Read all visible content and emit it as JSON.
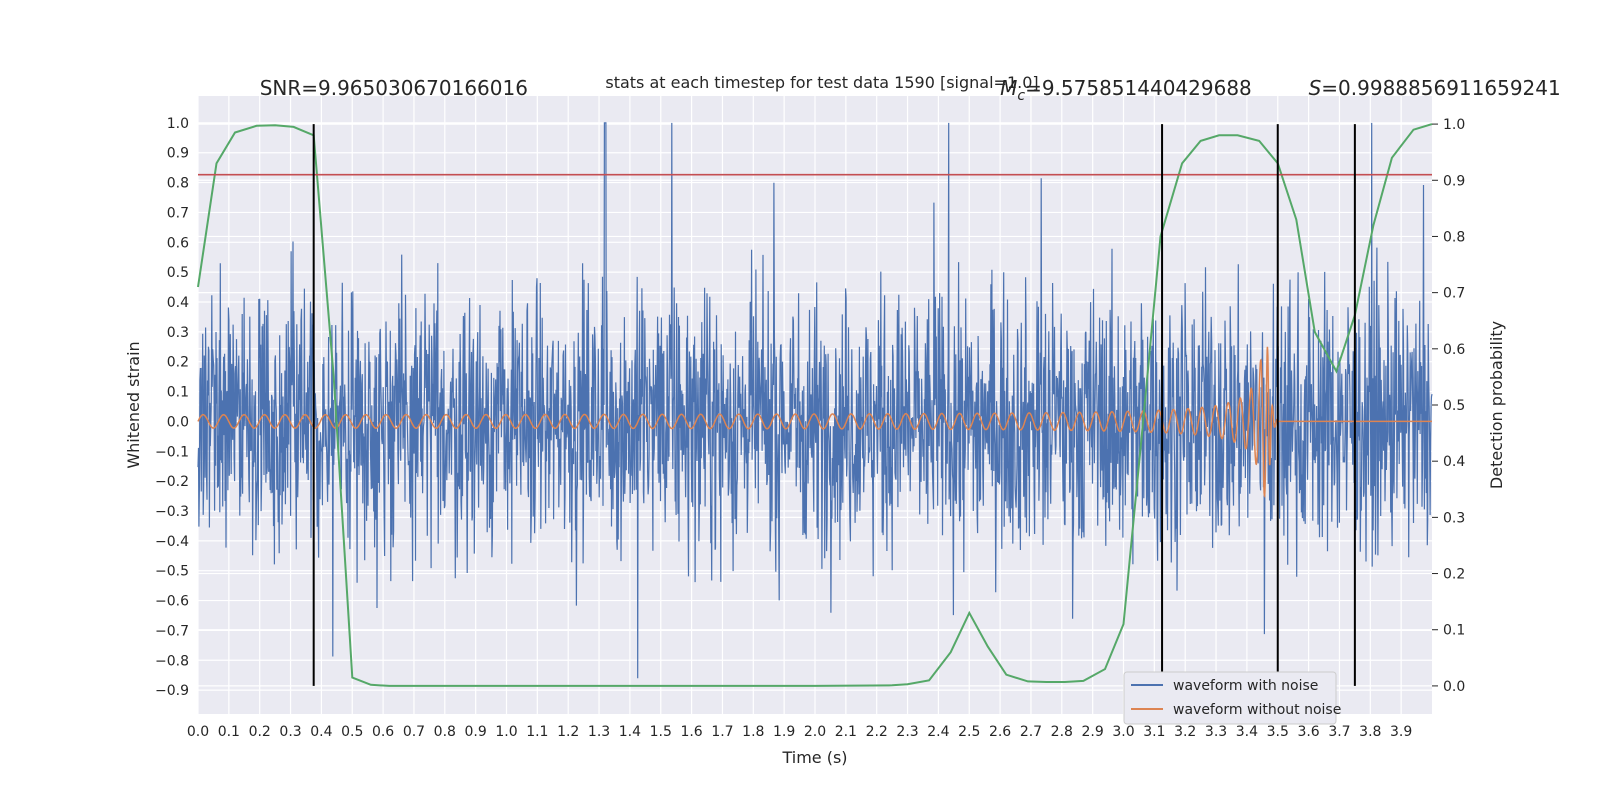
{
  "chart_data": {
    "type": "line",
    "title": "stats at each timestep for test data 1590 [signal=1.0]",
    "xlabel": "Time (s)",
    "ylabel": "Whitened strain",
    "ylabel_right": "Detection probability",
    "xlim": [
      0.0,
      4.0
    ],
    "ylim": [
      -0.98,
      1.09
    ],
    "ylim_right": [
      -0.05,
      1.05
    ],
    "x_ticks": [
      0.0,
      0.1,
      0.2,
      0.3,
      0.4,
      0.5,
      0.6,
      0.7,
      0.8,
      0.9,
      1.0,
      1.1,
      1.2,
      1.3,
      1.4,
      1.5,
      1.6,
      1.7,
      1.8,
      1.9,
      2.0,
      2.1,
      2.2,
      2.3,
      2.4,
      2.5,
      2.6,
      2.7,
      2.8,
      2.9,
      3.0,
      3.1,
      3.2,
      3.3,
      3.4,
      3.5,
      3.6,
      3.7,
      3.8,
      3.9
    ],
    "x_tick_labels": [
      "0.0",
      "0.1",
      "0.2",
      "0.3",
      "0.4",
      "0.5",
      "0.6",
      "0.7",
      "0.8",
      "0.9",
      "1.0",
      "1.1",
      "1.2",
      "1.3",
      "1.4",
      "1.5",
      "1.6",
      "1.7",
      "1.8",
      "1.9",
      "2.0",
      "2.1",
      "2.2",
      "2.3",
      "2.4",
      "2.5",
      "2.6",
      "2.7",
      "2.8",
      "2.9",
      "3.0",
      "3.1",
      "3.2",
      "3.3",
      "3.4",
      "3.5",
      "3.6",
      "3.7",
      "3.8",
      "3.9"
    ],
    "y_ticks": [
      1.0,
      0.9,
      0.8,
      0.7,
      0.6,
      0.5,
      0.4,
      0.3,
      0.2,
      0.1,
      0.0,
      -0.1,
      -0.2,
      -0.3,
      -0.4,
      -0.5,
      -0.6,
      -0.7,
      -0.8,
      -0.9
    ],
    "y_tick_labels": [
      "1.0",
      "0.9",
      "0.8",
      "0.7",
      "0.6",
      "0.5",
      "0.4",
      "0.3",
      "0.2",
      "0.1",
      "0.0",
      "−0.1",
      "−0.2",
      "−0.3",
      "−0.4",
      "−0.5",
      "−0.6",
      "−0.7",
      "−0.8",
      "−0.9"
    ],
    "y_right_ticks": [
      1.0,
      0.9,
      0.8,
      0.7,
      0.6,
      0.5,
      0.4,
      0.3,
      0.2,
      0.1,
      0.0
    ],
    "y_right_tick_labels": [
      "1.0",
      "0.9",
      "0.8",
      "0.7",
      "0.6",
      "0.5",
      "0.4",
      "0.3",
      "0.2",
      "0.1",
      "0.0"
    ],
    "grid": true,
    "background": "#eaeaf2",
    "series": [
      {
        "name": "waveform with noise",
        "axis": "left",
        "color": "#4c72b0",
        "kind": "noise",
        "amplitude_typical": 0.3,
        "amplitude_max": 1.0
      },
      {
        "name": "waveform without noise",
        "axis": "left",
        "color": "#dd8452",
        "kind": "chirp",
        "start_amplitude": 0.02,
        "peak_amplitude": 0.25,
        "merger_time": 3.47,
        "ringdown_end": 3.5,
        "start_frequency_hz": 11,
        "merger_frequency_hz": 62
      },
      {
        "axis": "right",
        "color": "#55a868",
        "x": [
          0.0,
          0.06,
          0.12,
          0.19,
          0.25,
          0.31,
          0.375,
          0.44,
          0.5,
          0.56,
          0.62,
          0.7,
          0.8,
          1.0,
          1.5,
          2.0,
          2.25,
          2.3,
          2.37,
          2.44,
          2.5,
          2.56,
          2.62,
          2.69,
          2.75,
          2.81,
          2.87,
          2.94,
          3.0,
          3.06,
          3.12,
          3.19,
          3.25,
          3.31,
          3.37,
          3.44,
          3.5,
          3.56,
          3.62,
          3.69,
          3.75,
          3.81,
          3.87,
          3.94,
          4.0
        ],
        "y": [
          0.71,
          0.93,
          0.985,
          0.997,
          0.998,
          0.995,
          0.98,
          0.55,
          0.015,
          0.002,
          0.0,
          0.0,
          0.0,
          0.0,
          0.0,
          0.0,
          0.001,
          0.003,
          0.01,
          0.06,
          0.13,
          0.07,
          0.02,
          0.008,
          0.007,
          0.007,
          0.009,
          0.03,
          0.11,
          0.45,
          0.8,
          0.93,
          0.97,
          0.98,
          0.98,
          0.97,
          0.93,
          0.83,
          0.63,
          0.56,
          0.66,
          0.82,
          0.94,
          0.99,
          1.0
        ]
      }
    ],
    "threshold": {
      "axis": "right",
      "value": 0.91,
      "color": "#c44e52"
    },
    "vertical_markers": [
      0.375,
      3.125,
      3.5,
      3.75
    ],
    "vertical_marker_range": [
      0.0,
      1.0
    ],
    "annotations": [
      {
        "text": "SNR=9.965030670166016",
        "x": 0.2,
        "y": 1.1
      },
      {
        "text": "M_c=9.575851440429688",
        "x": 2.6,
        "y": 1.1
      },
      {
        "text": "S=0.9988856911659241",
        "x": 3.6,
        "y": 1.1
      }
    ],
    "legend": {
      "placement": "lower-right",
      "entries": [
        "waveform with noise",
        "waveform without noise"
      ]
    }
  }
}
